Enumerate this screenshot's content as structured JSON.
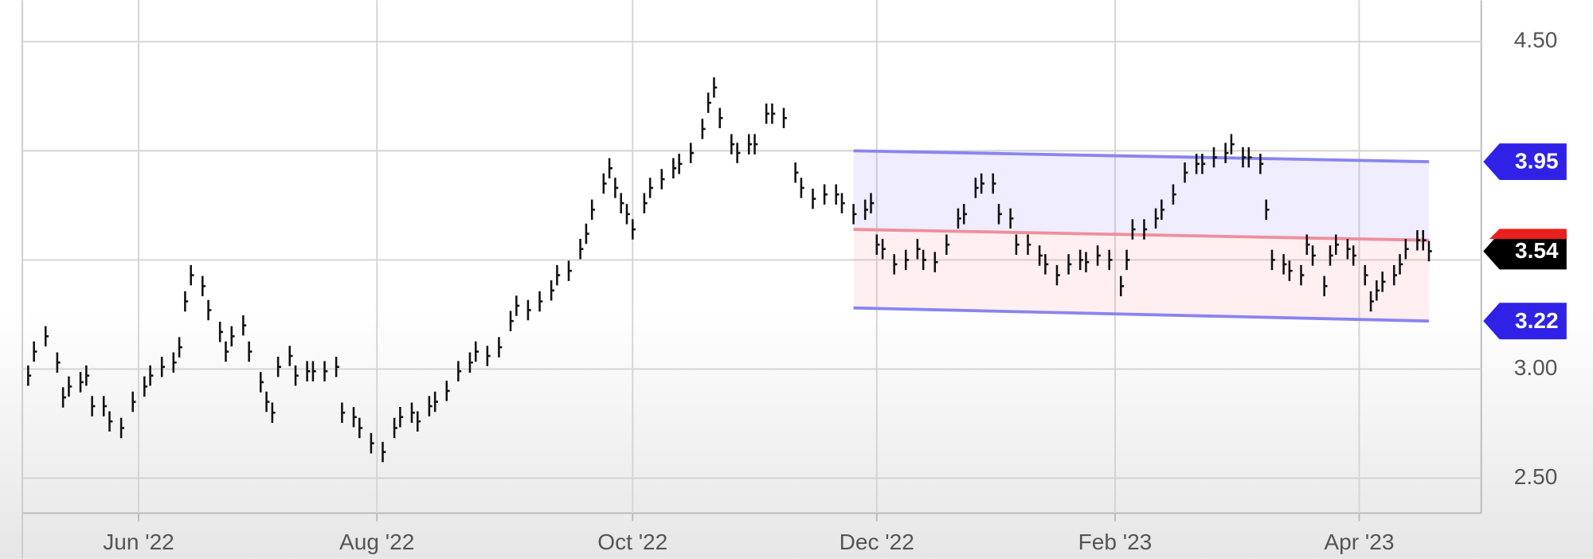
{
  "chart_data": {
    "type": "price_bars",
    "x": [
      2,
      3,
      5,
      7,
      8,
      9,
      11,
      12,
      13,
      15,
      16,
      18,
      20,
      22,
      23,
      25,
      27,
      28,
      29,
      30,
      32,
      33,
      35,
      36,
      37,
      39,
      40,
      42,
      43,
      44,
      45,
      47,
      48,
      50,
      51,
      53,
      55,
      56,
      58,
      59,
      61,
      63,
      65,
      66,
      68,
      69,
      71,
      72,
      74,
      76,
      78,
      79,
      81,
      83,
      85,
      86,
      88,
      90,
      92,
      93,
      95,
      97,
      98,
      99,
      101,
      102,
      103,
      104,
      105,
      106,
      108,
      109,
      111,
      113,
      114,
      116,
      118,
      119,
      120,
      121,
      123,
      124,
      126,
      127,
      129,
      130,
      132,
      134,
      135,
      137,
      139,
      141,
      142,
      144,
      146,
      147,
      148,
      149,
      151,
      153,
      155,
      156,
      158,
      160,
      162,
      163,
      165,
      166,
      168,
      169,
      171,
      172,
      174,
      176,
      177,
      179,
      181,
      183,
      184,
      186,
      188,
      190,
      191,
      192,
      194,
      196,
      197,
      199,
      201,
      203,
      204,
      206,
      208,
      209,
      211,
      212,
      214,
      215,
      216,
      218,
      219,
      221,
      222,
      223,
      225,
      226,
      227,
      229,
      230,
      232,
      233,
      234,
      235,
      237,
      238,
      239,
      241,
      242,
      243
    ],
    "values": [
      2.97,
      3.08,
      3.15,
      3.03,
      2.87,
      2.92,
      2.94,
      2.97,
      2.83,
      2.83,
      2.76,
      2.73,
      2.85,
      2.92,
      2.97,
      3.01,
      3.03,
      3.1,
      3.31,
      3.43,
      3.38,
      3.27,
      3.17,
      3.08,
      3.15,
      3.2,
      3.08,
      2.94,
      2.85,
      2.8,
      3.01,
      3.06,
      2.97,
      2.99,
      2.99,
      2.99,
      3.01,
      2.8,
      2.78,
      2.73,
      2.66,
      2.62,
      2.73,
      2.78,
      2.8,
      2.76,
      2.83,
      2.85,
      2.9,
      2.99,
      3.03,
      3.08,
      3.06,
      3.1,
      3.22,
      3.29,
      3.27,
      3.31,
      3.36,
      3.43,
      3.45,
      3.55,
      3.62,
      3.73,
      3.85,
      3.92,
      3.83,
      3.76,
      3.71,
      3.64,
      3.76,
      3.83,
      3.87,
      3.92,
      3.94,
      3.99,
      4.1,
      4.22,
      4.29,
      4.15,
      4.03,
      3.99,
      4.03,
      4.03,
      4.17,
      4.17,
      4.15,
      3.9,
      3.83,
      3.78,
      3.8,
      3.8,
      3.76,
      3.71,
      3.73,
      3.76,
      3.57,
      3.55,
      3.48,
      3.5,
      3.55,
      3.5,
      3.49,
      3.57,
      3.69,
      3.71,
      3.83,
      3.85,
      3.85,
      3.71,
      3.69,
      3.57,
      3.57,
      3.52,
      3.48,
      3.43,
      3.48,
      3.5,
      3.49,
      3.52,
      3.5,
      3.38,
      3.5,
      3.64,
      3.64,
      3.69,
      3.73,
      3.8,
      3.9,
      3.94,
      3.94,
      3.97,
      3.99,
      4.03,
      3.97,
      3.97,
      3.94,
      3.73,
      3.5,
      3.48,
      3.45,
      3.43,
      3.57,
      3.52,
      3.38,
      3.52,
      3.57,
      3.55,
      3.52,
      3.43,
      3.31,
      3.36,
      3.4,
      3.43,
      3.48,
      3.55,
      3.59,
      3.59,
      3.54
    ],
    "color": "#111111",
    "xlim": [
      1,
      252
    ],
    "xticks": [
      {
        "value": 21,
        "label": "Jun '22"
      },
      {
        "value": 62,
        "label": "Aug '22"
      },
      {
        "value": 106,
        "label": "Oct '22"
      },
      {
        "value": 148,
        "label": "Dec '22"
      },
      {
        "value": 189,
        "label": "Feb '23"
      },
      {
        "value": 231,
        "label": "Apr '23"
      }
    ],
    "ylim": [
      2.34,
      4.69
    ],
    "yticks": [
      {
        "value": 4.5,
        "label": "4.50"
      },
      {
        "value": 3.0,
        "label": "3.00"
      },
      {
        "value": 2.5,
        "label": "2.50"
      }
    ],
    "ygrid": [
      4.0,
      3.5
    ],
    "grid": true,
    "channel": {
      "x": [
        144,
        243
      ],
      "upper": [
        4.0,
        3.95
      ],
      "middle": [
        3.64,
        3.59
      ],
      "lower": [
        3.28,
        3.22
      ]
    },
    "price_tags": [
      {
        "value": 3.95,
        "color": "#2f22e6"
      },
      {
        "value": 3.54,
        "color": "#000000"
      },
      {
        "value": 3.22,
        "color": "#2f22e6"
      }
    ]
  }
}
